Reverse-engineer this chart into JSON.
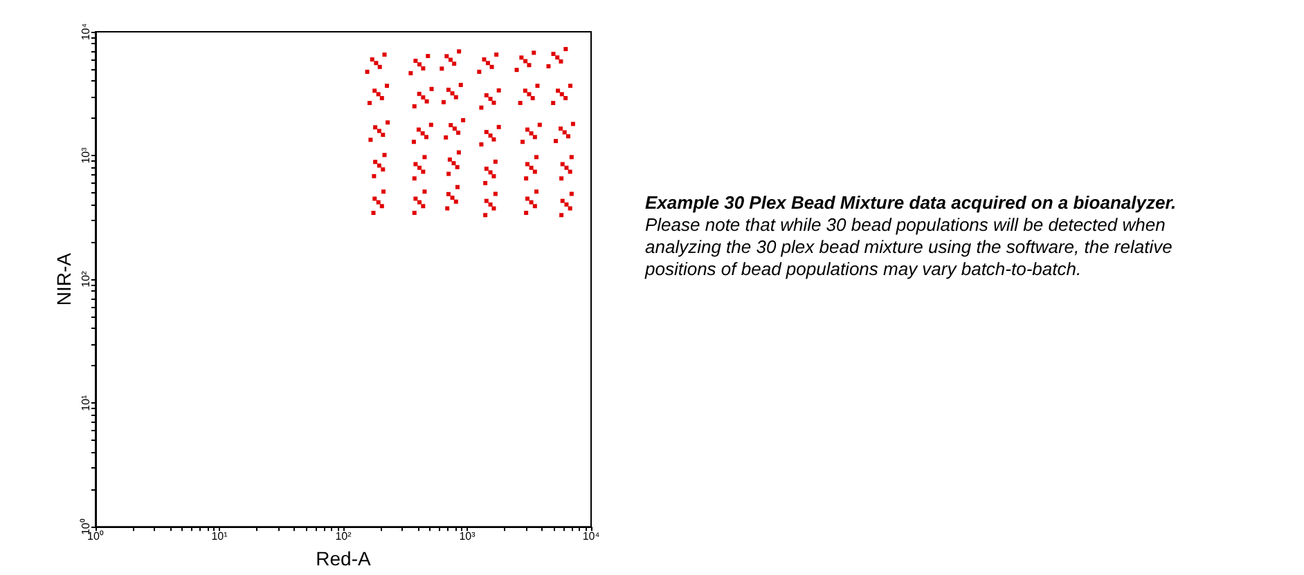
{
  "chart_data": {
    "type": "scatter",
    "xlabel": "Red-A",
    "ylabel": "NIR-A",
    "annotations": [
      "Example 30 Plex Bead Mixture data acquired on a bioanalyzer.",
      "Please note that while 30 bead populations will be detected when analyzing the 30 plex bead mixture using the software, the relative positions of bead populations may vary batch-to-batch."
    ],
    "log": "xy",
    "marker": "square",
    "color": "#e00000",
    "xlim": [
      1,
      10000
    ],
    "ylim": [
      1,
      10000
    ],
    "xticks": [
      {
        "value": 1,
        "label": "10⁰"
      },
      {
        "value": 2,
        "label": null
      },
      {
        "value": 3,
        "label": null
      },
      {
        "value": 4,
        "label": null
      },
      {
        "value": 5,
        "label": null
      },
      {
        "value": 6,
        "label": null
      },
      {
        "value": 7,
        "label": null
      },
      {
        "value": 8,
        "label": null
      },
      {
        "value": 9,
        "label": null
      },
      {
        "value": 10,
        "label": "10¹"
      },
      {
        "value": 20,
        "label": null
      },
      {
        "value": 30,
        "label": null
      },
      {
        "value": 40,
        "label": null
      },
      {
        "value": 50,
        "label": null
      },
      {
        "value": 60,
        "label": null
      },
      {
        "value": 70,
        "label": null
      },
      {
        "value": 80,
        "label": null
      },
      {
        "value": 90,
        "label": null
      },
      {
        "value": 100,
        "label": "10²"
      },
      {
        "value": 200,
        "label": null
      },
      {
        "value": 300,
        "label": null
      },
      {
        "value": 400,
        "label": null
      },
      {
        "value": 500,
        "label": null
      },
      {
        "value": 600,
        "label": null
      },
      {
        "value": 700,
        "label": null
      },
      {
        "value": 800,
        "label": null
      },
      {
        "value": 900,
        "label": null
      },
      {
        "value": 1000,
        "label": "10³"
      },
      {
        "value": 2000,
        "label": null
      },
      {
        "value": 3000,
        "label": null
      },
      {
        "value": 4000,
        "label": null
      },
      {
        "value": 5000,
        "label": null
      },
      {
        "value": 6000,
        "label": null
      },
      {
        "value": 7000,
        "label": null
      },
      {
        "value": 8000,
        "label": null
      },
      {
        "value": 9000,
        "label": null
      },
      {
        "value": 10000,
        "label": "10⁴"
      }
    ],
    "yticks": [
      {
        "value": 1,
        "label": "10⁰"
      },
      {
        "value": 2,
        "label": null
      },
      {
        "value": 3,
        "label": null
      },
      {
        "value": 4,
        "label": null
      },
      {
        "value": 5,
        "label": null
      },
      {
        "value": 6,
        "label": null
      },
      {
        "value": 7,
        "label": null
      },
      {
        "value": 8,
        "label": null
      },
      {
        "value": 9,
        "label": null
      },
      {
        "value": 10,
        "label": "10¹"
      },
      {
        "value": 20,
        "label": null
      },
      {
        "value": 30,
        "label": null
      },
      {
        "value": 40,
        "label": null
      },
      {
        "value": 50,
        "label": null
      },
      {
        "value": 60,
        "label": null
      },
      {
        "value": 70,
        "label": null
      },
      {
        "value": 80,
        "label": null
      },
      {
        "value": 90,
        "label": null
      },
      {
        "value": 100,
        "label": "10²"
      },
      {
        "value": 200,
        "label": null
      },
      {
        "value": 300,
        "label": null
      },
      {
        "value": 400,
        "label": null
      },
      {
        "value": 500,
        "label": null
      },
      {
        "value": 600,
        "label": null
      },
      {
        "value": 700,
        "label": null
      },
      {
        "value": 800,
        "label": null
      },
      {
        "value": 900,
        "label": null
      },
      {
        "value": 1000,
        "label": "10³"
      },
      {
        "value": 2000,
        "label": null
      },
      {
        "value": 3000,
        "label": null
      },
      {
        "value": 4000,
        "label": null
      },
      {
        "value": 5000,
        "label": null
      },
      {
        "value": 6000,
        "label": null
      },
      {
        "value": 7000,
        "label": null
      },
      {
        "value": 8000,
        "label": null
      },
      {
        "value": 9000,
        "label": null
      },
      {
        "value": 10000,
        "label": "10⁴"
      }
    ],
    "x": [
      184,
      215,
      156,
      197,
      171,
      412,
      482,
      350,
      441,
      383,
      734,
      859,
      624,
      785,
      683,
      1470,
      1720,
      1250,
      1580,
      1370,
      2950,
      3450,
      2510,
      3160,
      2740,
      5340,
      6240,
      4530,
      5710,
      4960,
      192,
      225,
      163,
      205,
      179,
      441,
      516,
      375,
      472,
      410,
      759,
      888,
      645,
      812,
      706,
      1540,
      1800,
      1300,
      1640,
      1430,
      3160,
      3690,
      2680,
      3380,
      2940,
      5810,
      6800,
      4940,
      6220,
      5400,
      195,
      228,
      166,
      209,
      181,
      437,
      511,
      371,
      468,
      406,
      792,
      927,
      673,
      847,
      737,
      1540,
      1800,
      1300,
      1640,
      1430,
      3290,
      3850,
      2800,
      3520,
      3060,
      6110,
      7150,
      5190,
      6540,
      5680,
      195,
      215,
      177,
      209,
      181,
      412,
      453,
      375,
      441,
      383,
      778,
      856,
      708,
      832,
      724,
      1540,
      1690,
      1400,
      1640,
      1430,
      3290,
      3620,
      2990,
      3520,
      3060,
      6330,
      6960,
      5760,
      6770,
      5880,
      192,
      211,
      175,
      205,
      179,
      412,
      453,
      375,
      441,
      383,
      759,
      835,
      691,
      812,
      706,
      1540,
      1690,
      1400,
      1640,
      1430,
      3290,
      3620,
      2990,
      3520,
      3060,
      6330,
      6960,
      5760,
      6770,
      5880
    ],
    "values": [
      5590,
      6540,
      4750,
      5200,
      5980,
      5450,
      6370,
      4630,
      5060,
      5830,
      5940,
      6940,
      5040,
      5520,
      6350,
      5590,
      6540,
      4750,
      5200,
      5980,
      5790,
      6770,
      4920,
      5380,
      6190,
      6200,
      7250,
      5270,
      5760,
      6630,
      3130,
      3660,
      2660,
      2910,
      3340,
      2950,
      3450,
      2500,
      2740,
      3150,
      3180,
      3720,
      2700,
      2960,
      3400,
      2870,
      3360,
      2440,
      2670,
      3070,
      3130,
      3660,
      2660,
      2910,
      3340,
      3130,
      3660,
      2660,
      2910,
      3340,
      1580,
      1850,
      1340,
      1470,
      1690,
      1510,
      1770,
      1290,
      1410,
      1620,
      1650,
      1930,
      1400,
      1530,
      1760,
      1450,
      1700,
      1230,
      1350,
      1550,
      1510,
      1770,
      1290,
      1410,
      1620,
      1540,
      1800,
      1310,
      1430,
      1650,
      830,
      1010,
      681,
      772,
      888,
      796,
      971,
      653,
      740,
      852,
      867,
      1060,
      711,
      806,
      928,
      731,
      892,
      599,
      680,
      782,
      796,
      971,
      653,
      740,
      852,
      796,
      971,
      653,
      740,
      852,
      419,
      511,
      344,
      390,
      448,
      419,
      511,
      344,
      390,
      448,
      456,
      556,
      374,
      424,
      488,
      402,
      490,
      330,
      374,
      430,
      419,
      511,
      344,
      390,
      448,
      402,
      490,
      330,
      374,
      430
    ]
  }
}
